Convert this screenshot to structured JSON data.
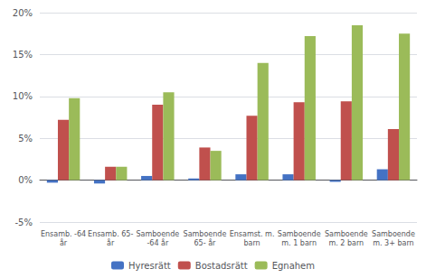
{
  "chart_data": {
    "type": "bar",
    "categories": [
      "Ensamb. -64\når",
      "Ensamb. 65-\når",
      "Samboende\n-64 år",
      "Samboende\n65- år",
      "Ensamst. m.\nbarn",
      "Samboende\nm. 1 barn",
      "Samboende\nm. 2 barn",
      "Samboende\nm. 3+ barn"
    ],
    "series": [
      {
        "name": "Hyresrätt",
        "color": "#4472C4",
        "values": [
          -0.3,
          -0.4,
          0.5,
          0.2,
          0.7,
          0.7,
          -0.2,
          1.3
        ]
      },
      {
        "name": "Bostadsrätt",
        "color": "#C0504D",
        "values": [
          7.2,
          1.6,
          9.0,
          3.9,
          7.7,
          9.3,
          9.4,
          6.1
        ]
      },
      {
        "name": "Egnahem",
        "color": "#9BBB59",
        "values": [
          9.8,
          1.6,
          10.5,
          3.5,
          14.0,
          17.2,
          18.5,
          17.5
        ]
      }
    ],
    "ylim": [
      -5,
      20
    ],
    "yticks": [
      {
        "value": -5,
        "label": "-5%"
      },
      {
        "value": 0,
        "label": "0%"
      },
      {
        "value": 5,
        "label": "5%"
      },
      {
        "value": 10,
        "label": "10%"
      },
      {
        "value": 15,
        "label": "15%"
      },
      {
        "value": 20,
        "label": "20%"
      }
    ],
    "grid": true,
    "legend": "bottom"
  }
}
